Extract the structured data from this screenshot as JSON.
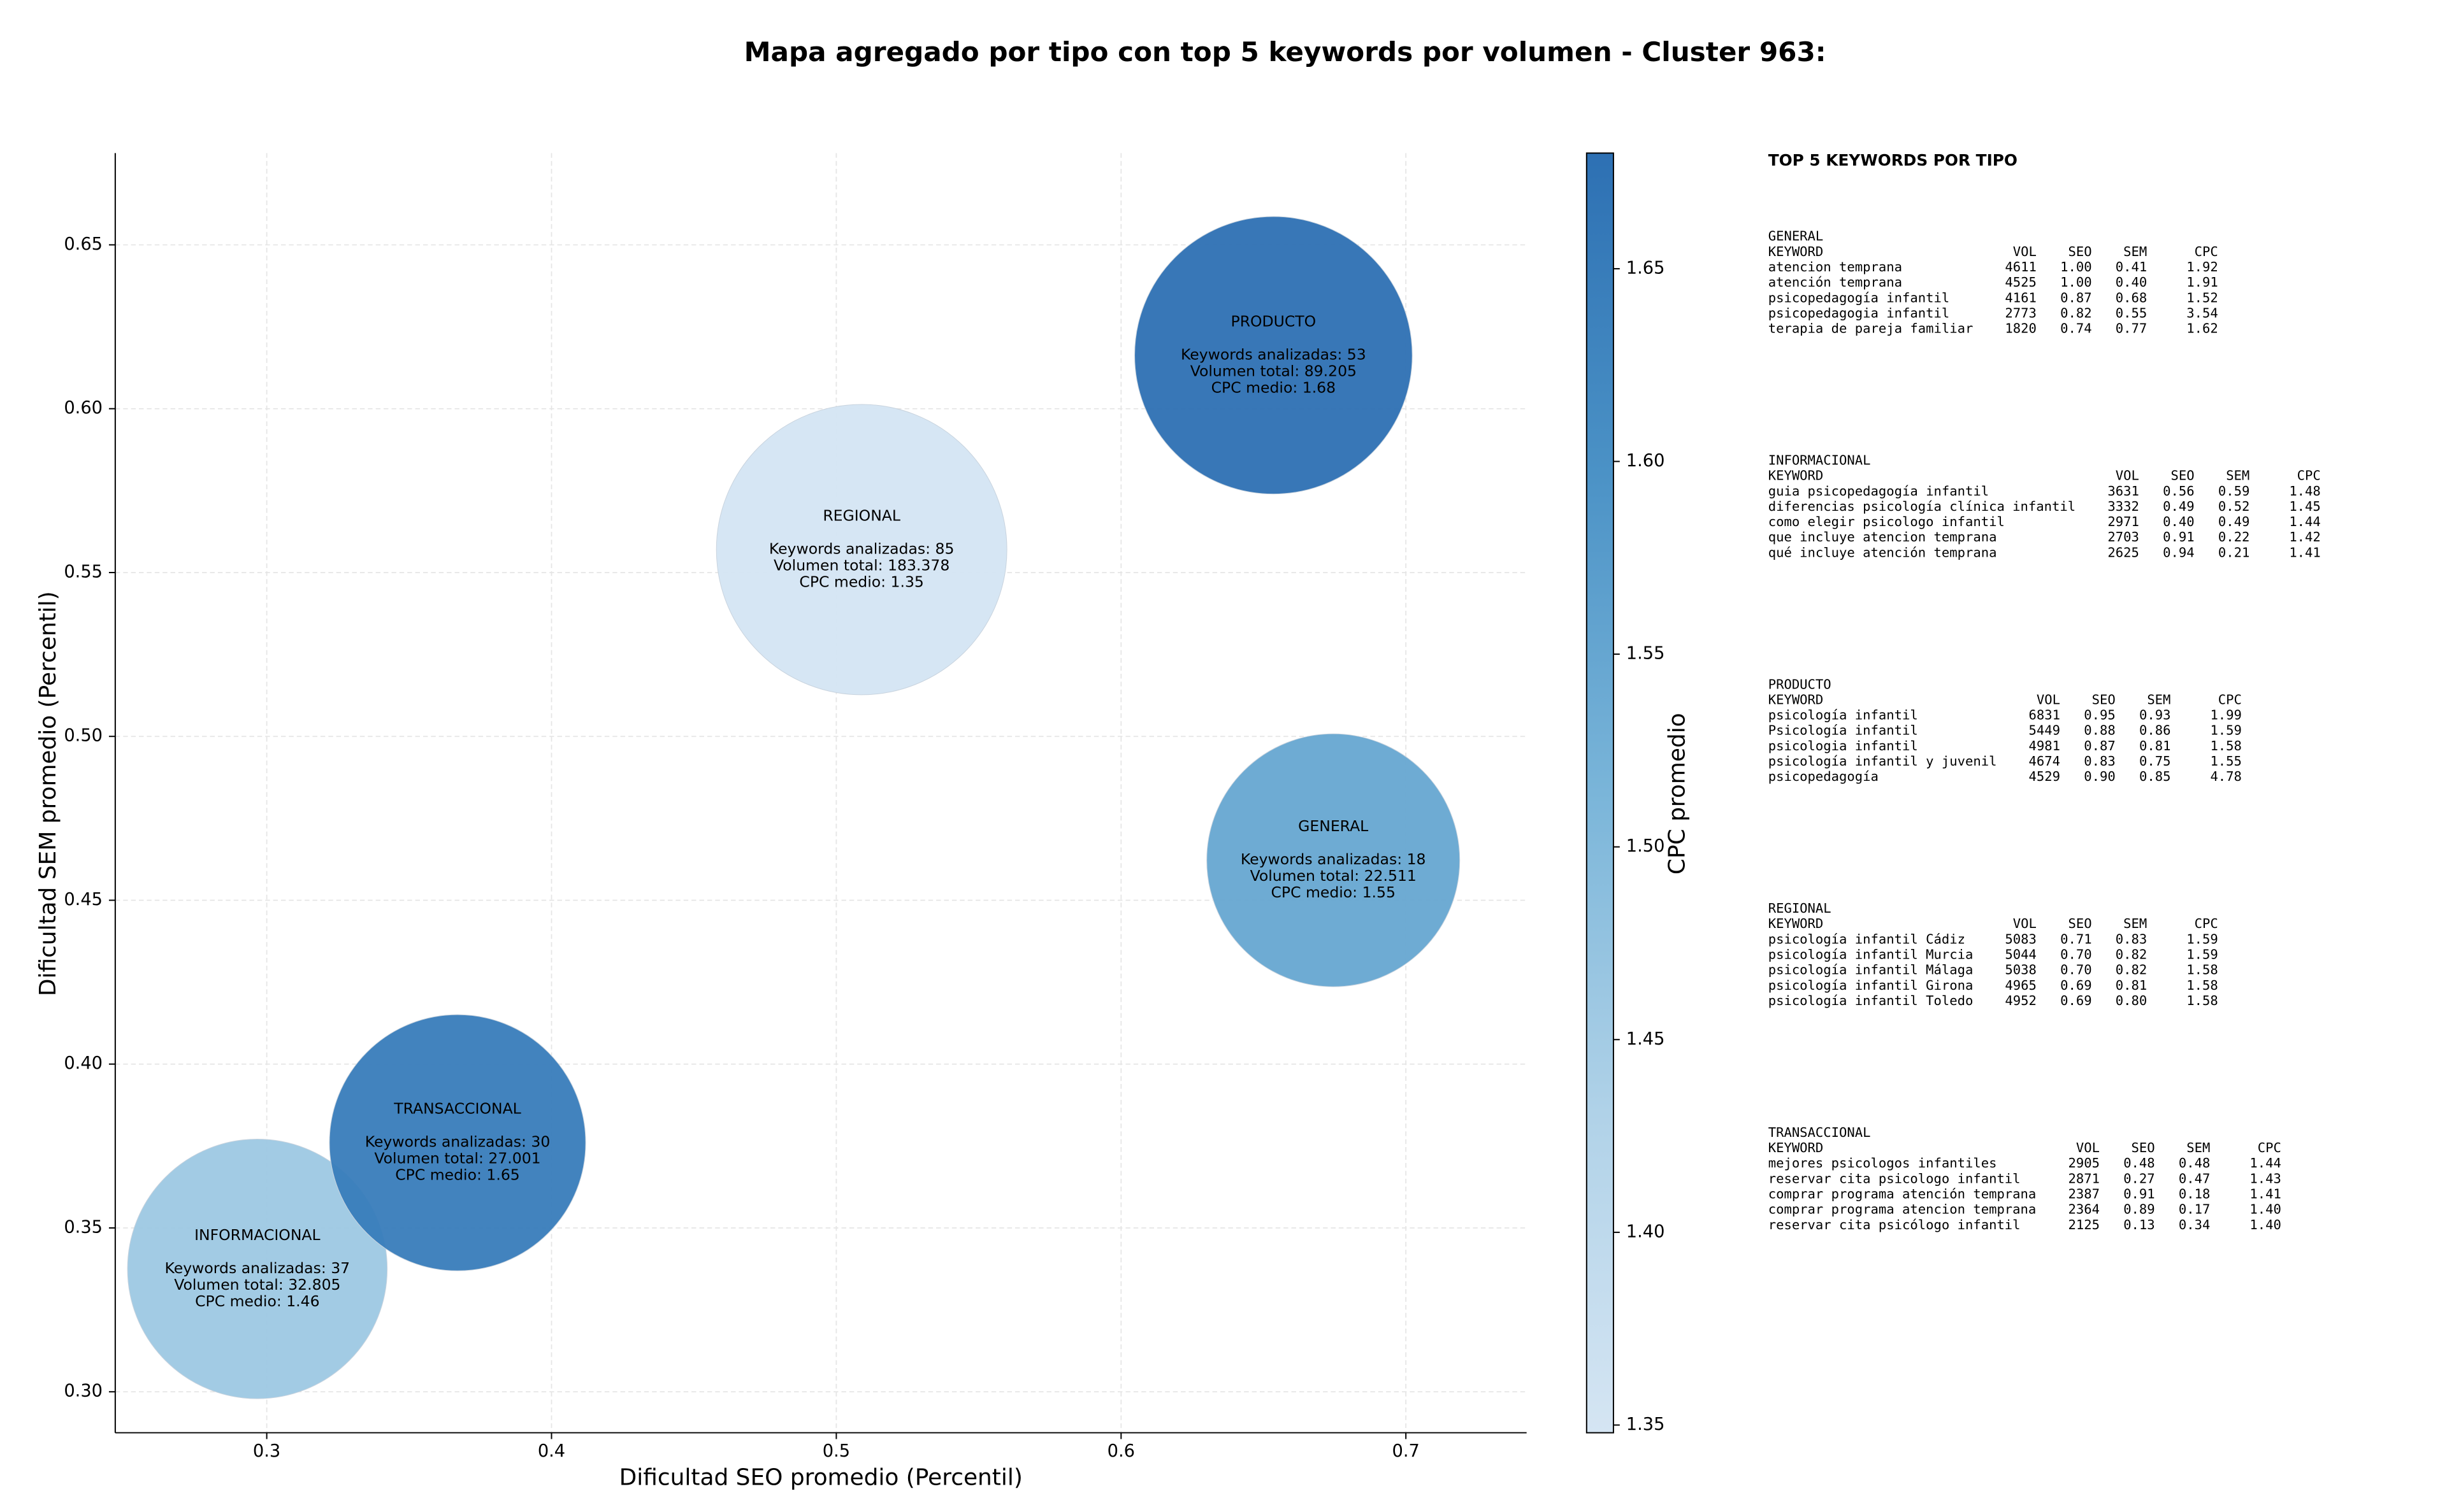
{
  "chart_data": {
    "type": "bubble",
    "title": "Mapa agregado por tipo con top 5 keywords por volumen - Cluster 963:",
    "xlabel": "Dificultad SEO promedio (Percentil)",
    "ylabel": "Dificultad SEM promedio (Percentil)",
    "xlim": [
      0.2468,
      0.7424
    ],
    "ylim": [
      0.2875,
      0.678
    ],
    "xticks": [
      0.3,
      0.4,
      0.5,
      0.6,
      0.7
    ],
    "yticks": [
      {
        "value": 0.3,
        "label": "0.30"
      },
      0.35,
      {
        "value": 0.4,
        "label": "0.40"
      },
      0.45,
      {
        "value": 0.5,
        "label": "0.50"
      },
      0.55,
      {
        "value": 0.6,
        "label": "0.60"
      },
      0.65
    ],
    "grid": true,
    "categories": [
      "GENERAL",
      "INFORMACIONAL",
      "PRODUCTO",
      "REGIONAL",
      "TRANSACCIONAL"
    ],
    "x": [
      0.6745,
      0.2967,
      0.6535,
      0.5089,
      0.367
    ],
    "values": [
      0.4622,
      0.3375,
      0.6163,
      0.557,
      0.376
    ],
    "sizes": [
      22511,
      32805,
      89205,
      183378,
      27001
    ],
    "cpc": [
      1.55,
      1.46,
      1.68,
      1.35,
      1.65
    ],
    "annotations": [
      [
        "Keywords analizadas: 18",
        "Volumen total: 22.511",
        "CPC medio: 1.55"
      ],
      [
        "Keywords analizadas: 37",
        "Volumen total: 32.805",
        "CPC medio: 1.46"
      ],
      [
        "Keywords analizadas: 53",
        "Volumen total: 89.205",
        "CPC medio: 1.68"
      ],
      [
        "Keywords analizadas: 85",
        "Volumen total: 183.378",
        "CPC medio: 1.35"
      ],
      [
        "Keywords analizadas: 30",
        "Volumen total: 27.001",
        "CPC medio: 1.65"
      ]
    ],
    "colorbar": {
      "label": "CPC promedio",
      "lim": [
        1.348,
        1.68
      ],
      "ticks": [
        1.35,
        {
          "value": 1.4,
          "label": "1.40"
        },
        1.45,
        {
          "value": 1.5,
          "label": "1.50"
        },
        1.55,
        {
          "value": 1.6,
          "label": "1.60"
        },
        1.65
      ],
      "colormap": [
        "#d5e5f3",
        "#b0d2e8",
        "#7ab5d9",
        "#4b92c6",
        "#2d70b3"
      ]
    },
    "top_keywords": {
      "title": "TOP 5 KEYWORDS POR TIPO",
      "columns": [
        "KEYWORD",
        "VOL",
        "SEO",
        "SEM",
        "CPC"
      ],
      "sections": [
        {
          "name": "GENERAL",
          "rows": [
            [
              "atencion temprana",
              "4611",
              "1.00",
              "0.41",
              "1.92"
            ],
            [
              "atención temprana",
              "4525",
              "1.00",
              "0.40",
              "1.91"
            ],
            [
              "psicopedagogía infantil",
              "4161",
              "0.87",
              "0.68",
              "1.52"
            ],
            [
              "psicopedagogia infantil",
              "2773",
              "0.82",
              "0.55",
              "3.54"
            ],
            [
              "terapia de pareja familiar",
              "1820",
              "0.74",
              "0.77",
              "1.62"
            ]
          ]
        },
        {
          "name": "INFORMACIONAL",
          "rows": [
            [
              "guia psicopedagogía infantil",
              "3631",
              "0.56",
              "0.59",
              "1.48"
            ],
            [
              "diferencias psicología clínica infantil",
              "3332",
              "0.49",
              "0.52",
              "1.45"
            ],
            [
              "como elegir psicologo infantil",
              "2971",
              "0.40",
              "0.49",
              "1.44"
            ],
            [
              "que incluye atencion temprana",
              "2703",
              "0.91",
              "0.22",
              "1.42"
            ],
            [
              "qué incluye atención temprana",
              "2625",
              "0.94",
              "0.21",
              "1.41"
            ]
          ]
        },
        {
          "name": "PRODUCTO",
          "rows": [
            [
              "psicología infantil",
              "6831",
              "0.95",
              "0.93",
              "1.99"
            ],
            [
              "Psicología infantil",
              "5449",
              "0.88",
              "0.86",
              "1.59"
            ],
            [
              "psicologia infantil",
              "4981",
              "0.87",
              "0.81",
              "1.58"
            ],
            [
              "psicología infantil y juvenil",
              "4674",
              "0.83",
              "0.75",
              "1.55"
            ],
            [
              "psicopedagogía",
              "4529",
              "0.90",
              "0.85",
              "4.78"
            ]
          ]
        },
        {
          "name": "REGIONAL",
          "rows": [
            [
              "psicología infantil Cádiz",
              "5083",
              "0.71",
              "0.83",
              "1.59"
            ],
            [
              "psicología infantil Murcia",
              "5044",
              "0.70",
              "0.82",
              "1.59"
            ],
            [
              "psicología infantil Málaga",
              "5038",
              "0.70",
              "0.82",
              "1.58"
            ],
            [
              "psicología infantil Girona",
              "4965",
              "0.69",
              "0.81",
              "1.58"
            ],
            [
              "psicología infantil Toledo",
              "4952",
              "0.69",
              "0.80",
              "1.58"
            ]
          ]
        },
        {
          "name": "TRANSACCIONAL",
          "rows": [
            [
              "mejores psicologos infantiles",
              "2905",
              "0.48",
              "0.48",
              "1.44"
            ],
            [
              "reservar cita psicologo infantil",
              "2871",
              "0.27",
              "0.47",
              "1.43"
            ],
            [
              "comprar programa atención temprana",
              "2387",
              "0.91",
              "0.18",
              "1.41"
            ],
            [
              "comprar programa atencion temprana",
              "2364",
              "0.89",
              "0.17",
              "1.40"
            ],
            [
              "reservar cita psicólogo infantil",
              "2125",
              "0.13",
              "0.34",
              "1.40"
            ]
          ]
        }
      ]
    }
  }
}
